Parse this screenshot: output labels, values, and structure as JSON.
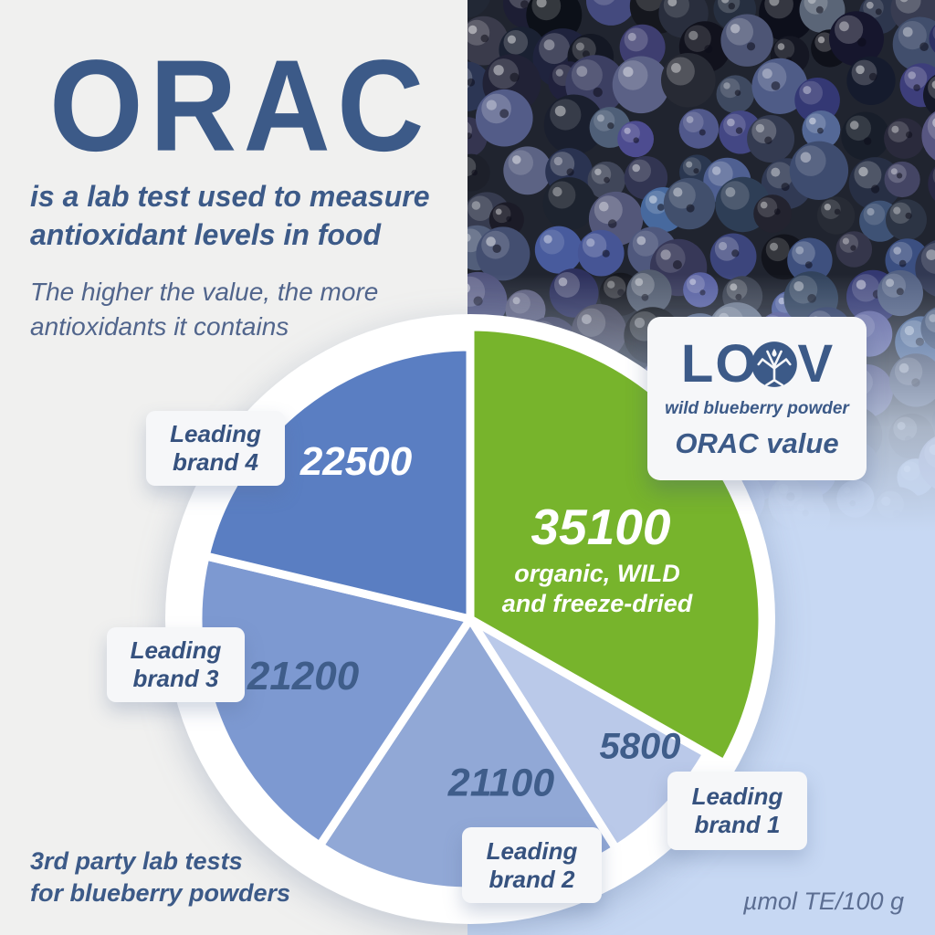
{
  "header": {
    "title": "ORAC",
    "subtitle_line1": "is a lab test used to measure",
    "subtitle_line2": "antioxidant levels in food",
    "tagline_line1": "The higher the value, the more",
    "tagline_line2": "antioxidants it contains"
  },
  "loov_card": {
    "brand_l": "L",
    "brand_o": "O",
    "brand_v": "V",
    "brand": "LOOV",
    "product": "wild blueberry powder",
    "card_title": "ORAC value"
  },
  "footer": {
    "note_line1": "3rd party lab tests",
    "note_line2": "for blueberry powders",
    "unit": "µmol TE/100 g"
  },
  "colors": {
    "accent_green": "#77b42c",
    "navy_text": "#3c5a88",
    "background_gray": "#f0f0ef",
    "background_lightblue": "#c7d8f3"
  },
  "chart_data": {
    "type": "pie",
    "unit": "µmol TE/100 g",
    "order": "clockwise from 12 o'clock",
    "legend_position": "labels around pie",
    "slices": [
      {
        "label": "LOOV wild blueberry powder",
        "value": 35100,
        "color": "#77b42c",
        "text_color": "#ffffff",
        "note_line1": "organic, WILD",
        "note_line2": "and freeze-dried",
        "emphasized": true
      },
      {
        "label": "Leading brand 1",
        "value": 5800,
        "color": "#bac9e9",
        "text_color": "#3f5d8a"
      },
      {
        "label": "Leading brand 2",
        "value": 21100,
        "color": "#91a8d6",
        "text_color": "#3f5d8a"
      },
      {
        "label": "Leading brand 3",
        "value": 21200,
        "color": "#7d99d1",
        "text_color": "#3f5d8a"
      },
      {
        "label": "Leading brand 4",
        "value": 22500,
        "color": "#5a7ec2",
        "text_color": "#ffffff"
      }
    ]
  }
}
